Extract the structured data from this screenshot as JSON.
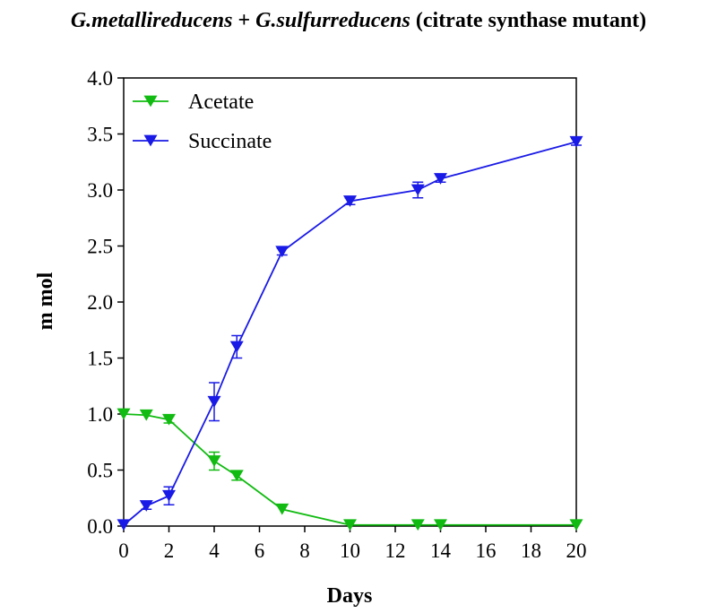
{
  "chart_data": {
    "type": "line",
    "title_parts": [
      "G.metallireducens",
      " + ",
      "G.sulfurreducens",
      " (citrate synthase mutant)"
    ],
    "xlabel": "Days",
    "ylabel": "m mol",
    "xlim": [
      0,
      20
    ],
    "ylim": [
      0,
      4.0
    ],
    "xticks": [
      0,
      2,
      4,
      6,
      8,
      10,
      12,
      14,
      16,
      18,
      20
    ],
    "yticks": [
      0,
      0.5,
      1.0,
      1.5,
      2.0,
      2.5,
      3.0,
      3.5,
      4.0
    ],
    "xtick_labels": [
      "0",
      "2",
      "4",
      "6",
      "8",
      "10",
      "12",
      "14",
      "16",
      "18",
      "20"
    ],
    "ytick_labels": [
      "0.0",
      "0.5",
      "1.0",
      "1.5",
      "2.0",
      "2.5",
      "3.0",
      "3.5",
      "4.0"
    ],
    "grid": false,
    "legend_position": "top-left",
    "marker": "down-triangle",
    "series": [
      {
        "name": "Acetate",
        "color": "#11bb11",
        "x": [
          0,
          1,
          2,
          4,
          5,
          7,
          10,
          13,
          14,
          20
        ],
        "y": [
          1.0,
          0.99,
          0.95,
          0.58,
          0.45,
          0.15,
          0.01,
          0.01,
          0.01,
          0.01
        ],
        "err": [
          0.02,
          0.02,
          0.03,
          0.08,
          0.04,
          0.02,
          0.01,
          0.01,
          0.01,
          0.01
        ]
      },
      {
        "name": "Succinate",
        "color": "#1a1ae6",
        "x": [
          0,
          1,
          2,
          4,
          5,
          7,
          10,
          13,
          14,
          20
        ],
        "y": [
          0.01,
          0.18,
          0.27,
          1.11,
          1.6,
          2.45,
          2.9,
          3.0,
          3.1,
          3.43
        ],
        "err": [
          0.01,
          0.03,
          0.08,
          0.17,
          0.1,
          0.03,
          0.03,
          0.07,
          0.03,
          0.03
        ]
      }
    ]
  }
}
